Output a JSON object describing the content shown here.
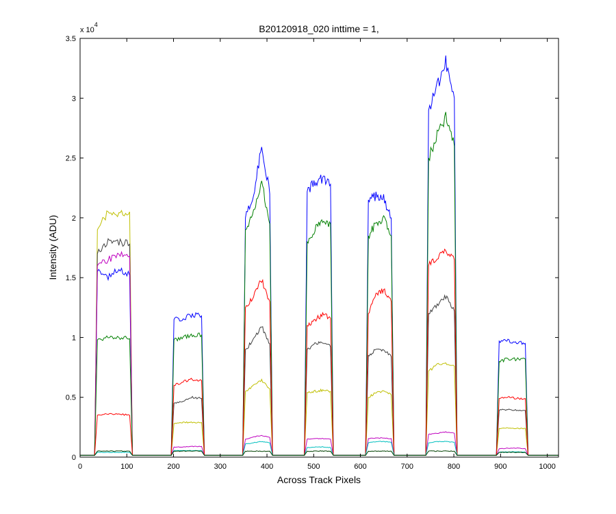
{
  "chart_data": {
    "type": "line",
    "title": "B20120918_020 inttime = 1,",
    "xlabel": "Across Track Pixels",
    "ylabel": "Intensity (ADU)",
    "y_multiplier_label": {
      "base": "x 10",
      "exponent": "4"
    },
    "xlim": [
      0,
      1024
    ],
    "ylim": [
      0,
      35000
    ],
    "xticks": [
      0,
      100,
      200,
      300,
      400,
      500,
      600,
      700,
      800,
      900,
      1000
    ],
    "yticks": [
      0,
      5000,
      10000,
      15000,
      20000,
      25000,
      30000,
      35000
    ],
    "xtick_labels": [
      "0",
      "100",
      "200",
      "300",
      "400",
      "500",
      "600",
      "700",
      "800",
      "900",
      "1000"
    ],
    "ytick_labels": [
      "0",
      "0.5",
      "1",
      "1.5",
      "2",
      "2.5",
      "3",
      "3.5"
    ],
    "baseline": 150,
    "grid": false,
    "segments": [
      {
        "x_start": 33,
        "x_end": 110
      },
      {
        "x_start": 197,
        "x_end": 264
      },
      {
        "x_start": 350,
        "x_end": 410
      },
      {
        "x_start": 482,
        "x_end": 540
      },
      {
        "x_start": 613,
        "x_end": 670
      },
      {
        "x_start": 742,
        "x_end": 805
      },
      {
        "x_start": 893,
        "x_end": 957
      }
    ],
    "series": [
      {
        "color": "#0000ff",
        "segment_values": [
          [
            15500,
            15000,
            15800,
            15200
          ],
          [
            11500,
            11600,
            11900,
            11800
          ],
          [
            20000,
            22000,
            26000,
            22000
          ],
          [
            22200,
            23000,
            23300,
            22800
          ],
          [
            21500,
            21800,
            21600,
            20000
          ],
          [
            29000,
            31000,
            33000,
            30000
          ],
          [
            9700,
            9700,
            9600,
            9500
          ]
        ]
      },
      {
        "color": "#bfbf00",
        "segment_values": [
          [
            19000,
            20500,
            20300,
            20500
          ],
          [
            2800,
            2900,
            2900,
            2900
          ],
          [
            5500,
            6000,
            6400,
            5700
          ],
          [
            5400,
            5500,
            5600,
            5500
          ],
          [
            5000,
            5400,
            5500,
            5200
          ],
          [
            7200,
            7700,
            7900,
            7600
          ],
          [
            2400,
            2450,
            2400,
            2400
          ]
        ]
      },
      {
        "color": "#3f3f3f",
        "segment_values": [
          [
            17000,
            18000,
            18000,
            17800
          ],
          [
            4500,
            4700,
            5000,
            4900
          ],
          [
            9000,
            9800,
            10900,
            9500
          ],
          [
            9000,
            9400,
            9600,
            9200
          ],
          [
            8500,
            9000,
            9000,
            8400
          ],
          [
            12000,
            12800,
            13400,
            12200
          ],
          [
            3900,
            4000,
            3900,
            3900
          ]
        ]
      },
      {
        "color": "#bf00bf",
        "segment_values": [
          [
            16000,
            16500,
            16900,
            16800
          ],
          [
            850,
            850,
            900,
            900
          ],
          [
            1500,
            1700,
            1800,
            1650
          ],
          [
            1500,
            1550,
            1550,
            1500
          ],
          [
            1550,
            1600,
            1600,
            1550
          ],
          [
            1900,
            2000,
            2100,
            2000
          ],
          [
            700,
            750,
            750,
            700
          ]
        ]
      },
      {
        "color": "#007f00",
        "segment_values": [
          [
            9800,
            10000,
            10000,
            9900
          ],
          [
            9800,
            10000,
            10200,
            10200
          ],
          [
            19000,
            20500,
            23000,
            19500
          ],
          [
            18000,
            19000,
            19800,
            19500
          ],
          [
            18500,
            19500,
            20000,
            18500
          ],
          [
            25000,
            27000,
            28400,
            26000
          ],
          [
            8000,
            8200,
            8200,
            8200
          ]
        ]
      },
      {
        "color": "#ff0000",
        "segment_values": [
          [
            3500,
            3600,
            3600,
            3500
          ],
          [
            6000,
            6300,
            6500,
            6400
          ],
          [
            12500,
            13500,
            14800,
            13000
          ],
          [
            11000,
            11500,
            11900,
            11600
          ],
          [
            12000,
            13500,
            14000,
            13000
          ],
          [
            16000,
            16800,
            17200,
            16500
          ],
          [
            4900,
            5000,
            4900,
            4900
          ]
        ]
      },
      {
        "color": "#00bfbf",
        "segment_values": [
          [
            400,
            400,
            400,
            400
          ],
          [
            550,
            550,
            550,
            550
          ],
          [
            1100,
            1200,
            1300,
            1200
          ],
          [
            800,
            850,
            850,
            800
          ],
          [
            1200,
            1300,
            1300,
            1250
          ],
          [
            1200,
            1300,
            1300,
            1250
          ],
          [
            400,
            450,
            450,
            400
          ]
        ]
      },
      {
        "color": "#004000",
        "segment_values": [
          [
            500,
            500,
            500,
            500
          ],
          [
            500,
            500,
            500,
            500
          ],
          [
            500,
            500,
            500,
            500
          ],
          [
            500,
            500,
            500,
            500
          ],
          [
            500,
            500,
            500,
            500
          ],
          [
            500,
            500,
            500,
            500
          ],
          [
            400,
            400,
            400,
            400
          ]
        ]
      }
    ]
  }
}
